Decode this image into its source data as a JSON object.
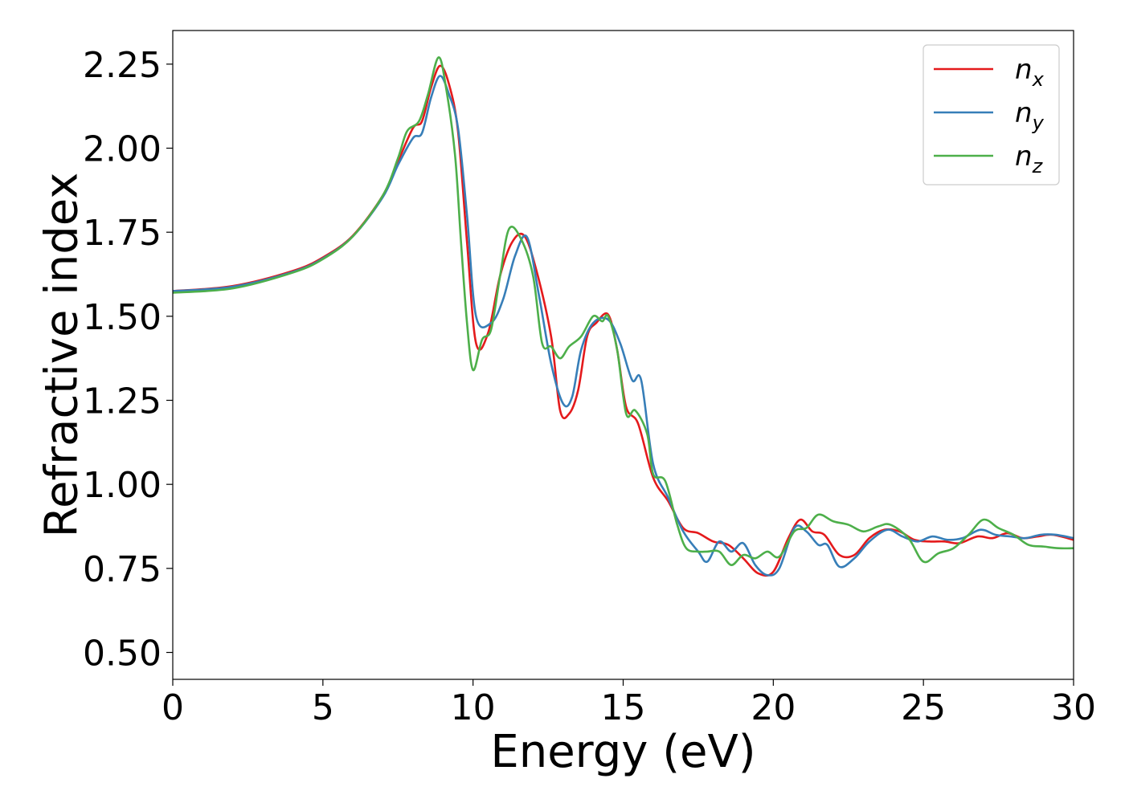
{
  "chart_data": {
    "type": "line",
    "xlabel": "Energy (eV)",
    "ylabel": "Refractive index",
    "xlim": [
      0,
      30
    ],
    "ylim": [
      0.42,
      2.35
    ],
    "xticks": [
      0,
      5,
      10,
      15,
      20,
      25,
      30
    ],
    "xtick_labels": [
      "0",
      "5",
      "10",
      "15",
      "20",
      "25",
      "30"
    ],
    "yticks": [
      0.5,
      0.75,
      1.0,
      1.25,
      1.5,
      1.75,
      2.0,
      2.25
    ],
    "ytick_labels": [
      "0.50",
      "0.75",
      "1.00",
      "1.25",
      "1.50",
      "1.75",
      "2.00",
      "2.25"
    ],
    "grid": false,
    "legend_position": "top-right",
    "series": [
      {
        "name": "n_x",
        "label_main": "n",
        "label_sub": "x",
        "color": "#e41a1c",
        "points": [
          [
            0,
            1.575
          ],
          [
            2,
            1.59
          ],
          [
            4,
            1.635
          ],
          [
            5,
            1.675
          ],
          [
            6,
            1.74
          ],
          [
            7,
            1.86
          ],
          [
            7.5,
            1.96
          ],
          [
            8.0,
            2.06
          ],
          [
            8.3,
            2.08
          ],
          [
            8.6,
            2.18
          ],
          [
            8.9,
            2.245
          ],
          [
            9.2,
            2.19
          ],
          [
            9.5,
            2.05
          ],
          [
            9.8,
            1.72
          ],
          [
            10.1,
            1.42
          ],
          [
            10.5,
            1.45
          ],
          [
            10.9,
            1.62
          ],
          [
            11.3,
            1.72
          ],
          [
            11.7,
            1.74
          ],
          [
            12.1,
            1.64
          ],
          [
            12.6,
            1.44
          ],
          [
            12.9,
            1.22
          ],
          [
            13.2,
            1.21
          ],
          [
            13.5,
            1.28
          ],
          [
            13.8,
            1.44
          ],
          [
            14.1,
            1.48
          ],
          [
            14.5,
            1.505
          ],
          [
            14.8,
            1.4
          ],
          [
            15.1,
            1.23
          ],
          [
            15.5,
            1.18
          ],
          [
            16.0,
            1.02
          ],
          [
            16.5,
            0.95
          ],
          [
            17.0,
            0.87
          ],
          [
            17.5,
            0.855
          ],
          [
            18.0,
            0.83
          ],
          [
            18.5,
            0.82
          ],
          [
            19.0,
            0.78
          ],
          [
            19.5,
            0.735
          ],
          [
            20.0,
            0.74
          ],
          [
            20.5,
            0.84
          ],
          [
            20.9,
            0.895
          ],
          [
            21.3,
            0.86
          ],
          [
            21.7,
            0.85
          ],
          [
            22.2,
            0.79
          ],
          [
            22.7,
            0.79
          ],
          [
            23.2,
            0.84
          ],
          [
            23.7,
            0.865
          ],
          [
            24.2,
            0.86
          ],
          [
            24.7,
            0.835
          ],
          [
            25.2,
            0.83
          ],
          [
            25.7,
            0.83
          ],
          [
            26.2,
            0.825
          ],
          [
            26.8,
            0.845
          ],
          [
            27.3,
            0.84
          ],
          [
            27.8,
            0.855
          ],
          [
            28.3,
            0.84
          ],
          [
            28.8,
            0.845
          ],
          [
            29.3,
            0.85
          ],
          [
            30,
            0.835
          ]
        ]
      },
      {
        "name": "n_y",
        "label_main": "n",
        "label_sub": "y",
        "color": "#377eb8",
        "points": [
          [
            0,
            1.575
          ],
          [
            2,
            1.588
          ],
          [
            4,
            1.632
          ],
          [
            5,
            1.672
          ],
          [
            6,
            1.738
          ],
          [
            7,
            1.855
          ],
          [
            7.5,
            1.95
          ],
          [
            8.0,
            2.03
          ],
          [
            8.3,
            2.045
          ],
          [
            8.6,
            2.15
          ],
          [
            8.9,
            2.215
          ],
          [
            9.2,
            2.16
          ],
          [
            9.5,
            2.06
          ],
          [
            9.8,
            1.8
          ],
          [
            10.1,
            1.5
          ],
          [
            10.6,
            1.48
          ],
          [
            11.0,
            1.55
          ],
          [
            11.4,
            1.68
          ],
          [
            11.8,
            1.735
          ],
          [
            12.2,
            1.56
          ],
          [
            12.6,
            1.36
          ],
          [
            13.0,
            1.24
          ],
          [
            13.3,
            1.26
          ],
          [
            13.6,
            1.4
          ],
          [
            14.0,
            1.48
          ],
          [
            14.5,
            1.49
          ],
          [
            14.9,
            1.42
          ],
          [
            15.3,
            1.31
          ],
          [
            15.6,
            1.31
          ],
          [
            16.0,
            1.06
          ],
          [
            16.5,
            0.96
          ],
          [
            17.0,
            0.86
          ],
          [
            17.5,
            0.8
          ],
          [
            17.8,
            0.77
          ],
          [
            18.2,
            0.83
          ],
          [
            18.6,
            0.8
          ],
          [
            19.0,
            0.825
          ],
          [
            19.4,
            0.76
          ],
          [
            19.8,
            0.73
          ],
          [
            20.2,
            0.75
          ],
          [
            20.7,
            0.87
          ],
          [
            21.1,
            0.86
          ],
          [
            21.5,
            0.82
          ],
          [
            21.8,
            0.82
          ],
          [
            22.2,
            0.755
          ],
          [
            22.7,
            0.78
          ],
          [
            23.2,
            0.83
          ],
          [
            23.8,
            0.865
          ],
          [
            24.3,
            0.845
          ],
          [
            24.8,
            0.83
          ],
          [
            25.3,
            0.845
          ],
          [
            25.8,
            0.835
          ],
          [
            26.3,
            0.84
          ],
          [
            26.9,
            0.865
          ],
          [
            27.4,
            0.85
          ],
          [
            27.9,
            0.845
          ],
          [
            28.4,
            0.84
          ],
          [
            28.9,
            0.85
          ],
          [
            29.4,
            0.85
          ],
          [
            30,
            0.84
          ]
        ]
      },
      {
        "name": "n_z",
        "label_main": "n",
        "label_sub": "z",
        "color": "#4daf4a",
        "points": [
          [
            0,
            1.57
          ],
          [
            2,
            1.583
          ],
          [
            4,
            1.63
          ],
          [
            5,
            1.67
          ],
          [
            6,
            1.738
          ],
          [
            7,
            1.86
          ],
          [
            7.5,
            1.97
          ],
          [
            7.8,
            2.05
          ],
          [
            8.2,
            2.08
          ],
          [
            8.5,
            2.16
          ],
          [
            8.85,
            2.27
          ],
          [
            9.1,
            2.18
          ],
          [
            9.4,
            1.98
          ],
          [
            9.6,
            1.72
          ],
          [
            9.8,
            1.48
          ],
          [
            10.0,
            1.34
          ],
          [
            10.3,
            1.43
          ],
          [
            10.6,
            1.46
          ],
          [
            10.9,
            1.62
          ],
          [
            11.2,
            1.76
          ],
          [
            11.6,
            1.73
          ],
          [
            12.0,
            1.62
          ],
          [
            12.3,
            1.42
          ],
          [
            12.6,
            1.41
          ],
          [
            12.9,
            1.375
          ],
          [
            13.2,
            1.41
          ],
          [
            13.6,
            1.44
          ],
          [
            14.0,
            1.5
          ],
          [
            14.3,
            1.485
          ],
          [
            14.5,
            1.5
          ],
          [
            14.8,
            1.4
          ],
          [
            15.1,
            1.21
          ],
          [
            15.4,
            1.22
          ],
          [
            15.8,
            1.15
          ],
          [
            16.0,
            1.03
          ],
          [
            16.4,
            1.01
          ],
          [
            16.8,
            0.88
          ],
          [
            17.1,
            0.81
          ],
          [
            17.5,
            0.8
          ],
          [
            17.8,
            0.8
          ],
          [
            18.2,
            0.8
          ],
          [
            18.6,
            0.76
          ],
          [
            19.0,
            0.79
          ],
          [
            19.4,
            0.78
          ],
          [
            19.8,
            0.8
          ],
          [
            20.2,
            0.785
          ],
          [
            20.7,
            0.86
          ],
          [
            21.1,
            0.87
          ],
          [
            21.5,
            0.91
          ],
          [
            22.0,
            0.89
          ],
          [
            22.5,
            0.88
          ],
          [
            23.0,
            0.86
          ],
          [
            23.5,
            0.875
          ],
          [
            23.9,
            0.88
          ],
          [
            24.5,
            0.84
          ],
          [
            25.0,
            0.77
          ],
          [
            25.5,
            0.795
          ],
          [
            26.0,
            0.81
          ],
          [
            26.5,
            0.85
          ],
          [
            27.0,
            0.895
          ],
          [
            27.5,
            0.87
          ],
          [
            28.0,
            0.85
          ],
          [
            28.5,
            0.82
          ],
          [
            29.0,
            0.815
          ],
          [
            29.5,
            0.81
          ],
          [
            30,
            0.81
          ]
        ]
      }
    ]
  }
}
